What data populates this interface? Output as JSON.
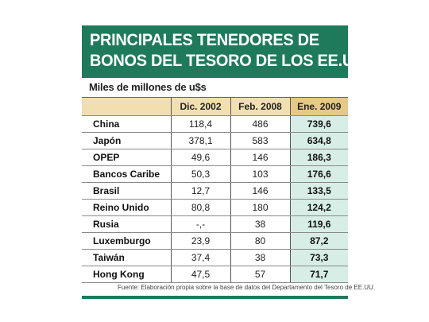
{
  "title": {
    "line1": "PRINCIPALES TENEDORES DE",
    "line2": "BONOS DEL TESORO DE LOS EE.UU."
  },
  "subtitle": "Miles de millones de u$s",
  "colors": {
    "title_bg": "#1f7a5c",
    "header_bg": "#f1dfb0",
    "highlight_header_bg": "#e6c988",
    "highlight_col_bg": "#d7eee6"
  },
  "chart_data": {
    "type": "table",
    "title": "PRINCIPALES TENEDORES DE BONOS DEL TESORO DE LOS EE.UU.",
    "unit": "Miles de millones de u$s",
    "columns": [
      "",
      "Dic. 2002",
      "Feb. 2008",
      "Ene. 2009"
    ],
    "rows": [
      {
        "name": "China",
        "values": [
          "118,4",
          "486",
          "739,6"
        ]
      },
      {
        "name": "Japón",
        "values": [
          "378,1",
          "583",
          "634,8"
        ]
      },
      {
        "name": "OPEP",
        "values": [
          "49,6",
          "146",
          "186,3"
        ]
      },
      {
        "name": "Bancos Caribe",
        "values": [
          "50,3",
          "103",
          "176,6"
        ]
      },
      {
        "name": "Brasil",
        "values": [
          "12,7",
          "146",
          "133,5"
        ]
      },
      {
        "name": "Reino Unido",
        "values": [
          "80,8",
          "180",
          "124,2"
        ]
      },
      {
        "name": "Rusia",
        "values": [
          "-,-",
          "38",
          "119,6"
        ]
      },
      {
        "name": "Luxemburgo",
        "values": [
          "23,9",
          "80",
          "87,2"
        ]
      },
      {
        "name": "Taiwán",
        "values": [
          "37,4",
          "38",
          "73,3"
        ]
      },
      {
        "name": "Hong Kong",
        "values": [
          "47,5",
          "57",
          "71,7"
        ]
      }
    ]
  },
  "source": "Fuente: Elaboración propia sobre la base de datos del Departamento del Tesoro de EE.UU."
}
